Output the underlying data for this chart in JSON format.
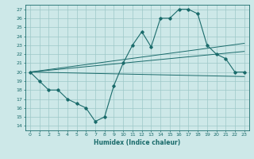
{
  "title": "",
  "xlabel": "Humidex (Indice chaleur)",
  "ylabel": "",
  "bg_color": "#cde8e8",
  "grid_color": "#9dc8c8",
  "line_color": "#1a6b6b",
  "xlim": [
    -0.5,
    23.5
  ],
  "ylim": [
    13.5,
    27.5
  ],
  "xticks": [
    0,
    1,
    2,
    3,
    4,
    5,
    6,
    7,
    8,
    9,
    10,
    11,
    12,
    13,
    14,
    15,
    16,
    17,
    18,
    19,
    20,
    21,
    22,
    23
  ],
  "yticks": [
    14,
    15,
    16,
    17,
    18,
    19,
    20,
    21,
    22,
    23,
    24,
    25,
    26,
    27
  ],
  "main_x": [
    0,
    1,
    2,
    3,
    4,
    5,
    6,
    7,
    8,
    9,
    10,
    11,
    12,
    13,
    14,
    15,
    16,
    17,
    18,
    19,
    20,
    21,
    22,
    23
  ],
  "main_y": [
    20,
    19,
    18,
    18,
    17,
    16.5,
    16,
    14.5,
    15,
    18.5,
    21,
    23,
    24.5,
    22.8,
    26,
    26,
    27,
    27,
    26.5,
    23,
    22,
    21.5,
    20,
    20
  ],
  "line2_x": [
    0,
    23
  ],
  "line2_y": [
    20,
    19.5
  ],
  "line3_x": [
    0,
    23
  ],
  "line3_y": [
    20,
    22.3
  ],
  "line4_x": [
    0,
    23
  ],
  "line4_y": [
    20,
    23.2
  ]
}
